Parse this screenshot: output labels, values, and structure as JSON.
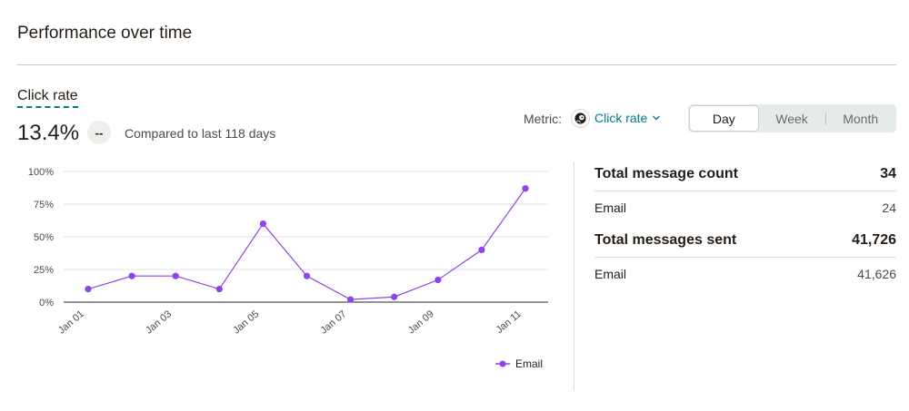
{
  "header": {
    "title": "Performance over time"
  },
  "summary": {
    "metric_label": "Click rate",
    "value": "13.4%",
    "delta": "--",
    "comparison": "Compared to last 118 days"
  },
  "metric_picker": {
    "label": "Metric:",
    "selected": "Click rate",
    "icon": "mailchimp-freddie-icon"
  },
  "range_toggle": {
    "options": [
      "Day",
      "Week",
      "Month"
    ],
    "selected": "Day"
  },
  "chart_data": {
    "type": "line",
    "x": [
      "Jan 01",
      "Jan 02",
      "Jan 03",
      "Jan 04",
      "Jan 05",
      "Jan 06",
      "Jan 07",
      "Jan 08",
      "Jan 09",
      "Jan 10",
      "Jan 11"
    ],
    "x_tick_labels": [
      "Jan 01",
      "Jan 03",
      "Jan 05",
      "Jan 07",
      "Jan 09",
      "Jan 11"
    ],
    "y_tick_labels": [
      "100%",
      "75%",
      "50%",
      "25%",
      "0%"
    ],
    "ylim": [
      0,
      100
    ],
    "grid": true,
    "legend": "bottom-right",
    "series": [
      {
        "name": "Email",
        "color": "#8e44e8",
        "values": [
          10,
          20,
          20,
          10,
          60,
          20,
          2,
          4,
          17,
          40,
          87
        ]
      }
    ]
  },
  "stats": {
    "total_count_label": "Total message count",
    "total_count_value": "34",
    "count_email_label": "Email",
    "count_email_value": "24",
    "total_sent_label": "Total messages sent",
    "total_sent_value": "41,726",
    "sent_email_label": "Email",
    "sent_email_value": "41,626"
  }
}
